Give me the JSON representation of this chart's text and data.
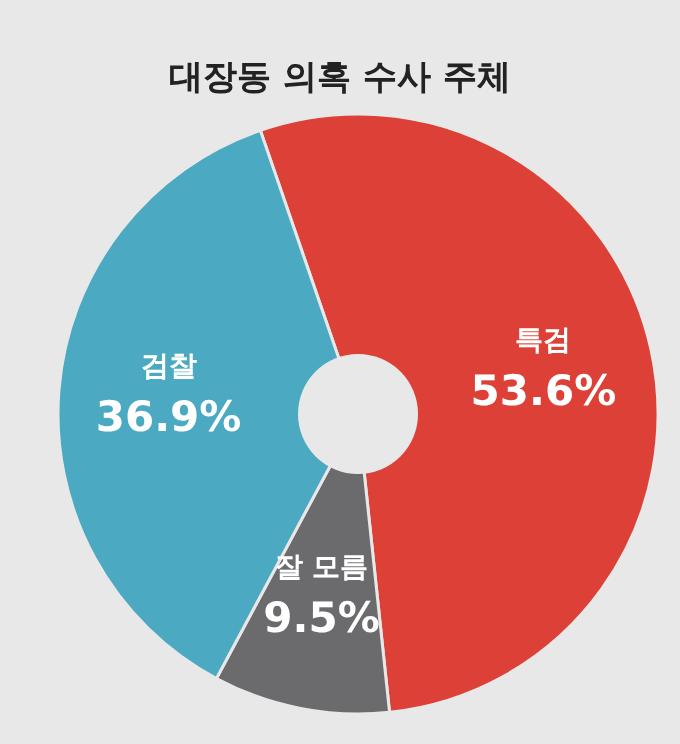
{
  "chart_data": {
    "type": "pie",
    "title": "대장동 의혹 수사 주체",
    "categories": [
      "특검",
      "잘 모름",
      "검찰"
    ],
    "values": [
      53.6,
      9.5,
      36.9
    ],
    "colors": [
      "#dc4036",
      "#6b6b6e",
      "#4ba9c1"
    ],
    "value_labels": [
      "53.6%",
      "9.5%",
      "36.9%"
    ]
  }
}
